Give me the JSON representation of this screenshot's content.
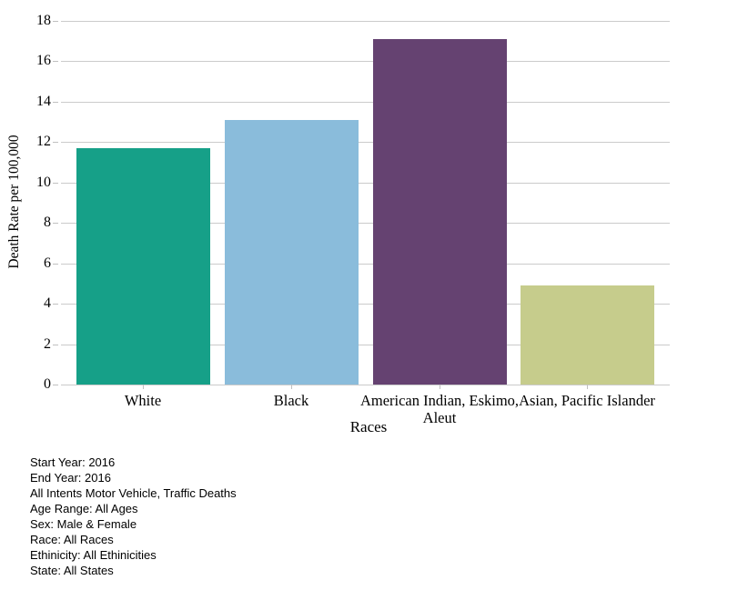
{
  "chart_data": {
    "type": "bar",
    "title": "",
    "xlabel": "Races",
    "ylabel": "Death Rate per 100,000",
    "categories": [
      "White",
      "Black",
      "American Indian, Eskimo, Aleut",
      "Asian, Pacific Islander"
    ],
    "category_label_lines": [
      [
        "White"
      ],
      [
        "Black"
      ],
      [
        "American Indian, Eskimo,",
        "Aleut"
      ],
      [
        "Asian, Pacific Islander"
      ]
    ],
    "values": [
      11.7,
      13.1,
      17.1,
      4.9
    ],
    "bar_colors": [
      "#16A088",
      "#8ABCDB",
      "#654271",
      "#C6CC8C"
    ],
    "ylim": [
      0,
      18
    ],
    "yticks": [
      0,
      2,
      4,
      6,
      8,
      10,
      12,
      14,
      16,
      18
    ],
    "grid": "horizontal",
    "gridline_color": "#cbcbcb",
    "legend": "none"
  },
  "footer": {
    "lines": [
      "Start Year: 2016",
      "End Year: 2016",
      "All Intents Motor Vehicle, Traffic Deaths",
      "Age Range: All Ages",
      "Sex: Male & Female",
      "Race: All Races",
      "Ethinicity: All Ethinicities",
      "State: All States"
    ]
  }
}
